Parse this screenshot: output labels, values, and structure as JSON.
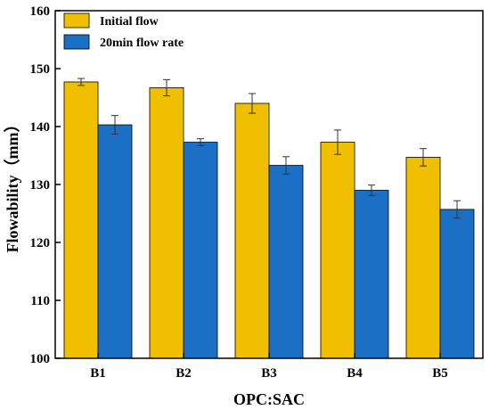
{
  "chart_data": {
    "type": "bar",
    "title": "",
    "xlabel": "OPC:SAC",
    "ylabel": "Flowability（mm）",
    "categories": [
      "B1",
      "B2",
      "B3",
      "B4",
      "B5"
    ],
    "ylim": [
      100,
      160
    ],
    "yticks": [
      "100",
      "110",
      "120",
      "130",
      "140",
      "150",
      "160"
    ],
    "grid": false,
    "legend_position": "top-left",
    "series": [
      {
        "name": "Initial flow",
        "color": "#F0C000",
        "values": [
          147.7,
          146.7,
          144.0,
          137.3,
          134.7
        ],
        "errors": [
          0.6,
          1.4,
          1.7,
          2.1,
          1.5
        ]
      },
      {
        "name": "20min flow rate",
        "color": "#1B6FC4",
        "values": [
          140.3,
          137.3,
          133.3,
          129.0,
          125.7
        ],
        "errors": [
          1.6,
          0.6,
          1.5,
          0.9,
          1.5
        ]
      }
    ]
  }
}
